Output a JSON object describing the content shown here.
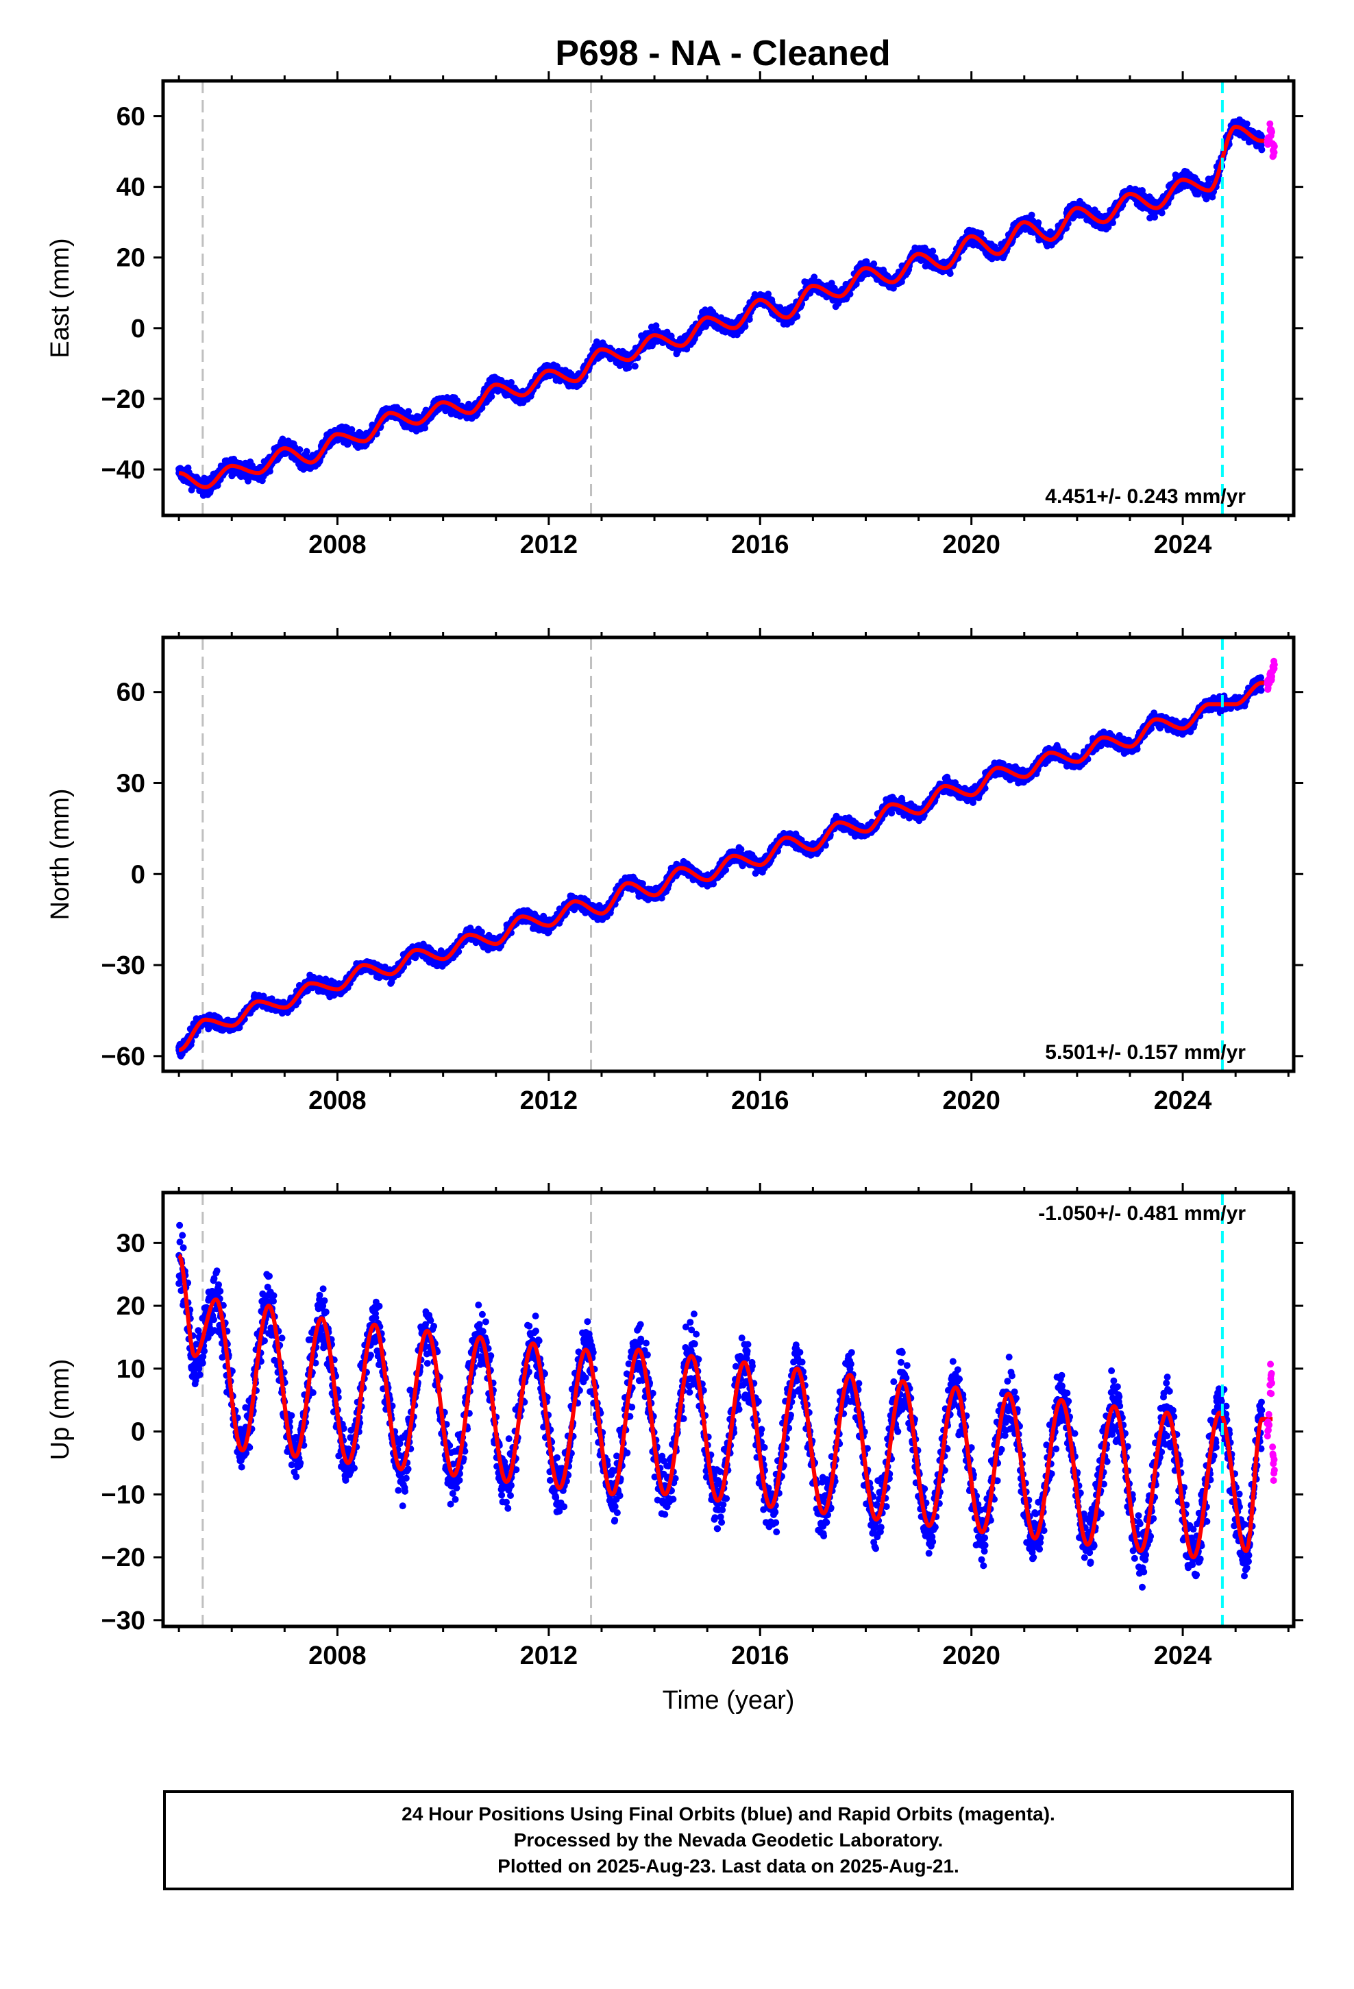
{
  "title": "P698  - NA - Cleaned",
  "footer": {
    "line1": "24 Hour Positions Using Final Orbits (blue) and Rapid Orbits (magenta).",
    "line2": "Processed by the Nevada Geodetic Laboratory.",
    "line3": "Plotted on 2025-Aug-23. Last data on 2025-Aug-21."
  },
  "colors": {
    "final_orbits": "#0000ff",
    "rapid_orbits": "#ff00ff",
    "model_fit": "#ff0000",
    "equipment_change": "#c0c0c0",
    "event_line": "#00ffff"
  },
  "chart_data": [
    {
      "type": "scatter",
      "ylabel": "East (mm)",
      "xlabel": "",
      "xlim": [
        2004.7,
        2026.1
      ],
      "ylim": [
        -53,
        70
      ],
      "xticks": [
        2008,
        2012,
        2016,
        2020,
        2024
      ],
      "yticks": [
        -40,
        -20,
        0,
        20,
        40,
        60
      ],
      "rate_label": "4.451+/- 0.243 mm/yr",
      "grid": false,
      "vlines_gray": [
        2005.45,
        2012.8
      ],
      "vline_cyan": 2024.75,
      "series": [
        {
          "name": "Final Orbits",
          "color": "blue",
          "x": [
            2005.0,
            2005.5,
            2006.0,
            2006.5,
            2007.0,
            2007.5,
            2008.0,
            2008.5,
            2009.0,
            2009.5,
            2010.0,
            2010.5,
            2011.0,
            2011.5,
            2012.0,
            2012.5,
            2013.0,
            2013.5,
            2014.0,
            2014.5,
            2015.0,
            2015.5,
            2016.0,
            2016.5,
            2017.0,
            2017.5,
            2018.0,
            2018.5,
            2019.0,
            2019.5,
            2020.0,
            2020.5,
            2021.0,
            2021.5,
            2022.0,
            2022.5,
            2023.0,
            2023.5,
            2024.0,
            2024.5,
            2025.0,
            2025.5
          ],
          "y": [
            -41,
            -45,
            -39,
            -41,
            -34,
            -38,
            -30,
            -32,
            -24,
            -27,
            -21,
            -24,
            -16,
            -19,
            -12,
            -15,
            -6,
            -9,
            -2,
            -5,
            3,
            0,
            8,
            3,
            12,
            9,
            17,
            13,
            21,
            17,
            26,
            21,
            30,
            25,
            34,
            30,
            38,
            34,
            42,
            39,
            57,
            53
          ]
        },
        {
          "name": "Rapid Orbits",
          "color": "magenta",
          "x": [
            2025.6,
            2025.65,
            2025.7
          ],
          "y": [
            53,
            56,
            51
          ]
        }
      ]
    },
    {
      "type": "scatter",
      "ylabel": "North (mm)",
      "xlabel": "",
      "xlim": [
        2004.7,
        2026.1
      ],
      "ylim": [
        -65,
        78
      ],
      "xticks": [
        2008,
        2012,
        2016,
        2020,
        2024
      ],
      "yticks": [
        -60,
        -30,
        0,
        30,
        60
      ],
      "rate_label": "5.501+/- 0.157 mm/yr",
      "grid": false,
      "vlines_gray": [
        2005.45,
        2012.8
      ],
      "vline_cyan": 2024.75,
      "series": [
        {
          "name": "Final Orbits",
          "color": "blue",
          "x": [
            2005.0,
            2005.5,
            2006.0,
            2006.5,
            2007.0,
            2007.5,
            2008.0,
            2008.5,
            2009.0,
            2009.5,
            2010.0,
            2010.5,
            2011.0,
            2011.5,
            2012.0,
            2012.5,
            2013.0,
            2013.5,
            2014.0,
            2014.5,
            2015.0,
            2015.5,
            2016.0,
            2016.5,
            2017.0,
            2017.5,
            2018.0,
            2018.5,
            2019.0,
            2019.5,
            2020.0,
            2020.5,
            2021.0,
            2021.5,
            2022.0,
            2022.5,
            2023.0,
            2023.5,
            2024.0,
            2024.5,
            2025.0,
            2025.5
          ],
          "y": [
            -58,
            -48,
            -50,
            -42,
            -44,
            -36,
            -38,
            -30,
            -33,
            -25,
            -28,
            -20,
            -23,
            -14,
            -17,
            -9,
            -13,
            -3,
            -7,
            2,
            -2,
            6,
            3,
            12,
            8,
            17,
            14,
            23,
            20,
            29,
            26,
            35,
            32,
            40,
            37,
            45,
            42,
            51,
            48,
            56,
            56,
            63
          ]
        },
        {
          "name": "Rapid Orbits",
          "color": "magenta",
          "x": [
            2025.6,
            2025.65,
            2025.7
          ],
          "y": [
            63,
            66,
            69
          ]
        }
      ]
    },
    {
      "type": "scatter",
      "ylabel": "Up (mm)",
      "xlabel": "Time (year)",
      "xlim": [
        2004.7,
        2026.1
      ],
      "ylim": [
        -31,
        38
      ],
      "xticks": [
        2008,
        2012,
        2016,
        2020,
        2024
      ],
      "yticks": [
        -30,
        -20,
        -10,
        0,
        10,
        20,
        30
      ],
      "rate_label": "-1.050+/- 0.481 mm/yr",
      "grid": false,
      "vlines_gray": [
        2005.45,
        2012.8
      ],
      "vline_cyan": 2024.75,
      "series": [
        {
          "name": "Final Orbits",
          "color": "blue",
          "x": [
            2005.0,
            2005.3,
            2005.7,
            2006.2,
            2006.7,
            2007.2,
            2007.7,
            2008.2,
            2008.7,
            2009.2,
            2009.7,
            2010.2,
            2010.7,
            2011.2,
            2011.7,
            2012.2,
            2012.7,
            2013.2,
            2013.7,
            2014.2,
            2014.7,
            2015.2,
            2015.7,
            2016.2,
            2016.7,
            2017.2,
            2017.7,
            2018.2,
            2018.7,
            2019.2,
            2019.7,
            2020.2,
            2020.7,
            2021.2,
            2021.7,
            2022.2,
            2022.7,
            2023.2,
            2023.7,
            2024.2,
            2024.7,
            2025.2,
            2025.5
          ],
          "y": [
            28,
            12,
            21,
            -3,
            20,
            -4,
            18,
            -5,
            17,
            -6,
            16,
            -7,
            15,
            -8,
            14,
            -9,
            13,
            -10,
            13,
            -10,
            12,
            -11,
            11,
            -12,
            10,
            -13,
            9,
            -14,
            8,
            -15,
            7,
            -16,
            6,
            -17,
            5,
            -18,
            4,
            -19,
            3,
            -20,
            3,
            -19,
            2
          ]
        },
        {
          "name": "Rapid Orbits",
          "color": "magenta",
          "x": [
            2025.6,
            2025.65,
            2025.7
          ],
          "y": [
            0,
            8,
            -5
          ]
        }
      ]
    }
  ]
}
